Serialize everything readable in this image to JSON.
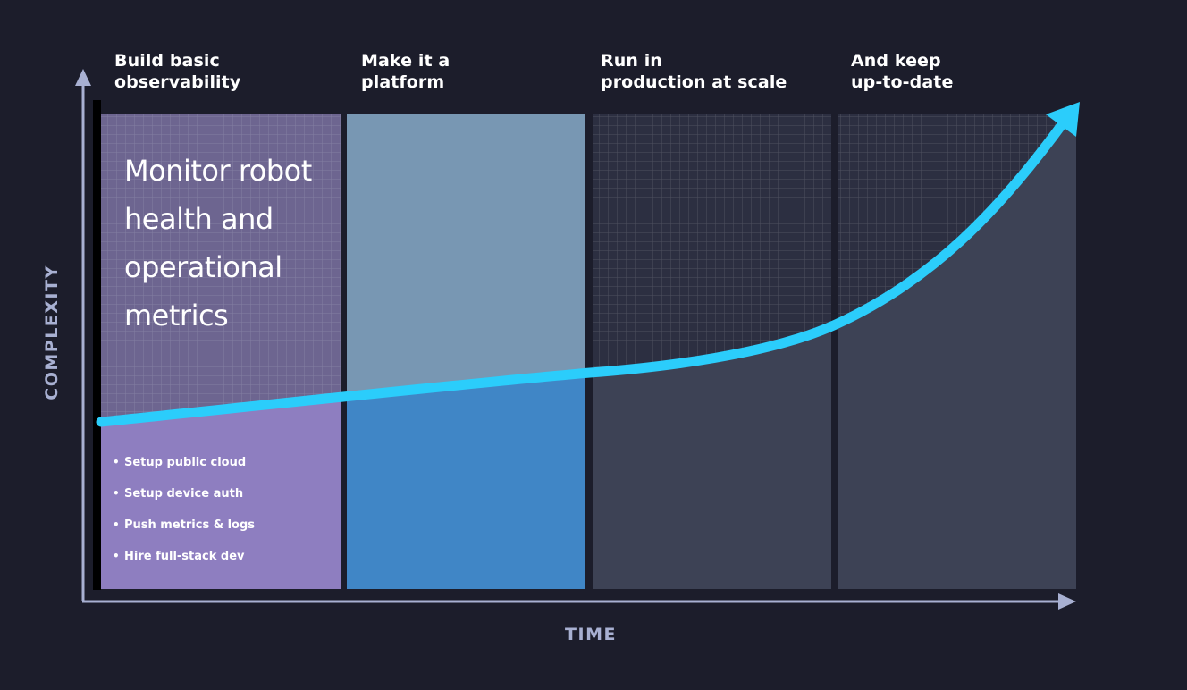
{
  "axes": {
    "y_label": "COMPLEXITY",
    "x_label": "TIME"
  },
  "phases": [
    {
      "title": "Build basic\nobservability",
      "color": "#8e7ec0",
      "upper_color": "#6d6590",
      "grid": true
    },
    {
      "title": "Make it a\nplatform",
      "color": "#4086c6",
      "upper_color": "#7897b3",
      "grid": false
    },
    {
      "title": "Run in\nproduction at scale",
      "color": "#3d4255",
      "upper_color": "#2c2f41",
      "grid": true
    },
    {
      "title": "And keep\nup-to-date",
      "color": "#3d4255",
      "upper_color": "#2c2f41",
      "grid": true
    }
  ],
  "heading": "Monitor robot health and operational metrics",
  "tasks": [
    "Setup public cloud",
    "Setup device auth",
    "Push metrics & logs",
    "Hire full-stack dev"
  ],
  "colors": {
    "background": "#1c1d2b",
    "axis": "#a8b0d2",
    "curve": "#2bcdfb",
    "grid_line": "#ffffff"
  }
}
